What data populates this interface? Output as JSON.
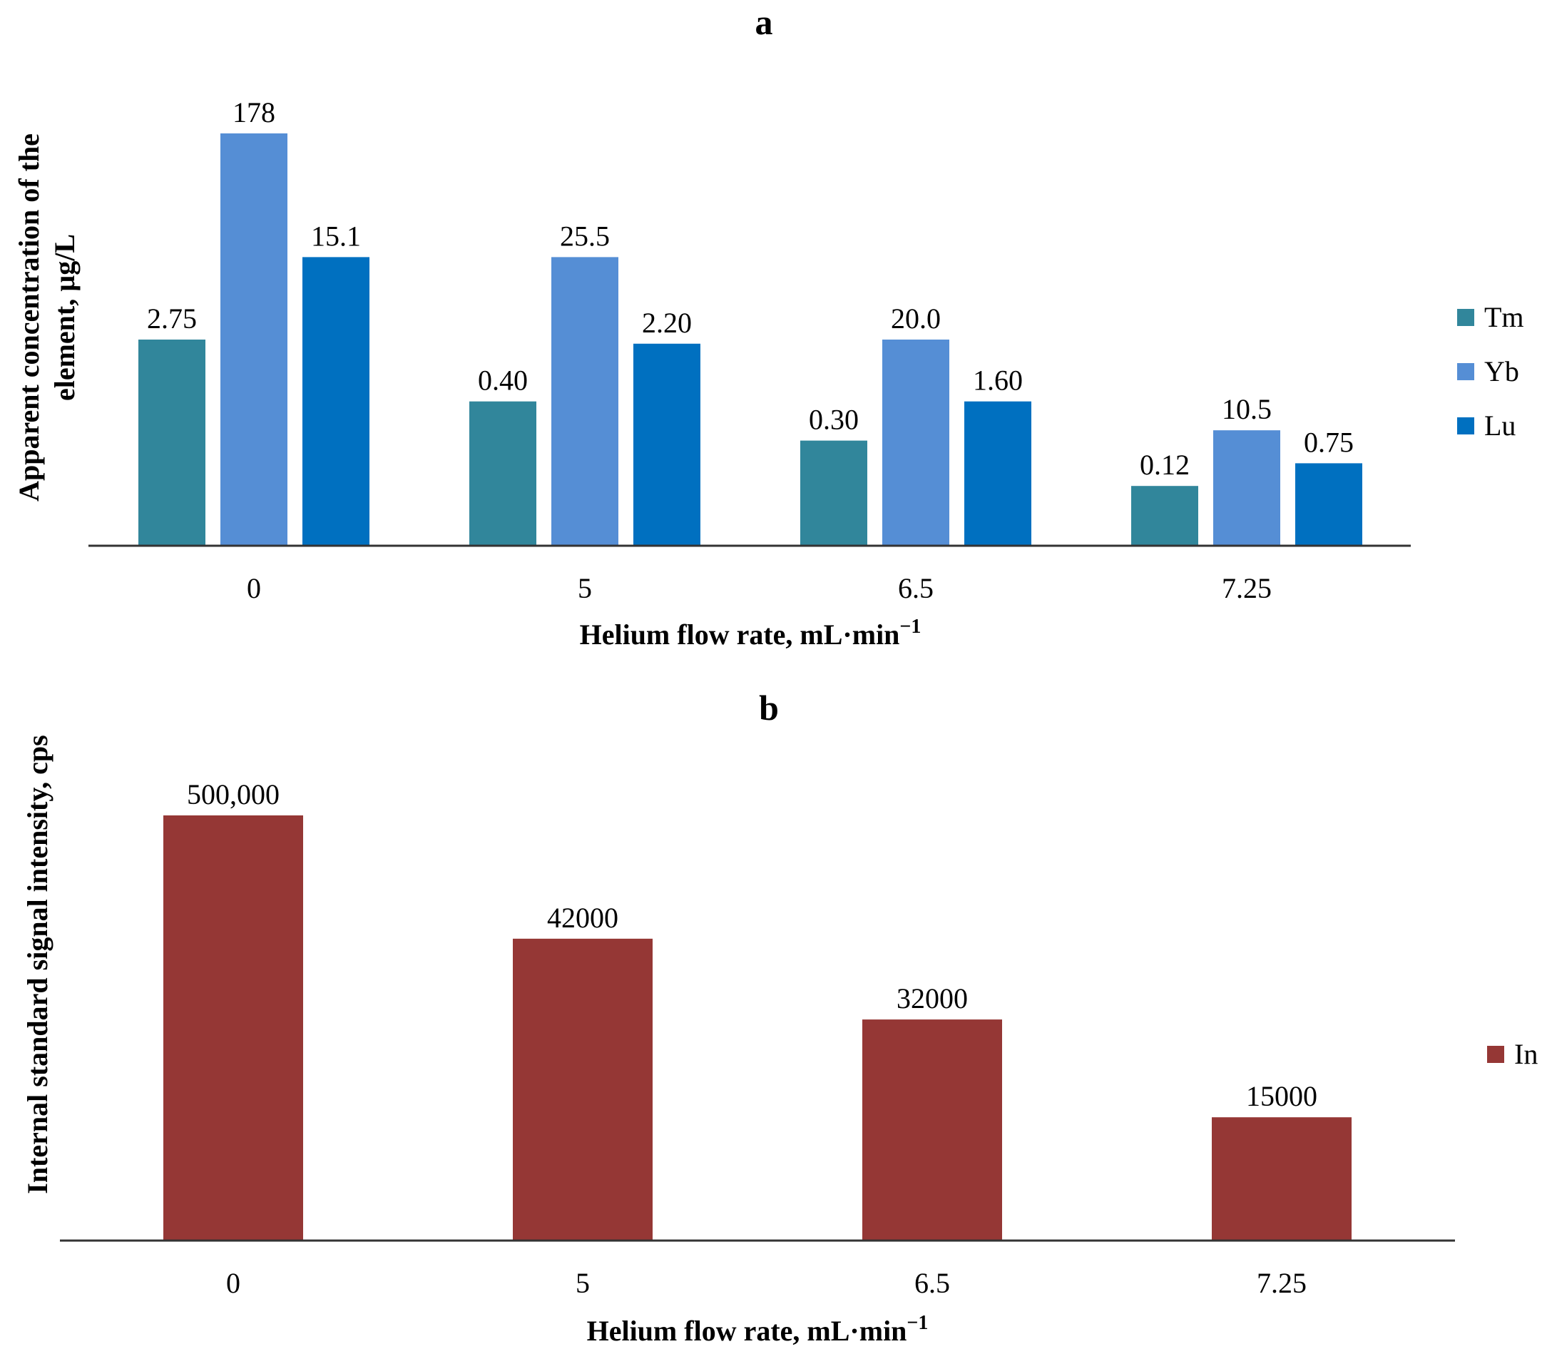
{
  "chart_data": [
    {
      "type": "bar",
      "panel_label": "a",
      "categories": [
        "0",
        "5",
        "6.5",
        "7.25"
      ],
      "xlabel": "Helium flow rate, mL·min",
      "xlabel_sup": "−1",
      "ylabel_line1": "Apparent concentration of the",
      "ylabel_line2": "element, µg/L",
      "axis_scale": "non-linear (bar heights not proportional to labels)",
      "legend_position": "right",
      "series": [
        {
          "name": "Tm",
          "color": "#31869b",
          "values": [
            2.75,
            0.4,
            0.3,
            0.12
          ],
          "labels": [
            "2.75",
            "0.40",
            "0.30",
            "0.12"
          ],
          "display_level": [
            0.5,
            0.35,
            0.255,
            0.145
          ]
        },
        {
          "name": "Yb",
          "color": "#558ed5",
          "values": [
            178,
            25.5,
            20.0,
            10.5
          ],
          "labels": [
            "178",
            "25.5",
            "20.0",
            "10.5"
          ],
          "display_level": [
            1.0,
            0.7,
            0.5,
            0.28
          ]
        },
        {
          "name": "Lu",
          "color": "#0070c0",
          "values": [
            15.1,
            2.2,
            1.6,
            0.75
          ],
          "labels": [
            "15.1",
            "2.20",
            "1.60",
            "0.75"
          ],
          "display_level": [
            0.7,
            0.49,
            0.35,
            0.2
          ]
        }
      ]
    },
    {
      "type": "bar",
      "panel_label": "b",
      "categories": [
        "0",
        "5",
        "6.5",
        "7.25"
      ],
      "xlabel": "Helium flow rate, mL·min",
      "xlabel_sup": "−1",
      "ylabel": "Internal standard signal intensity, cps",
      "axis_scale": "non-linear (bar heights not proportional to labels)",
      "legend_position": "right",
      "series": [
        {
          "name": "In",
          "color": "#953735",
          "values": [
            500000,
            42000,
            32000,
            15000
          ],
          "labels": [
            "500,000",
            "42000",
            "32000",
            "15000"
          ],
          "display_level": [
            1.0,
            0.71,
            0.52,
            0.29
          ]
        }
      ]
    }
  ]
}
